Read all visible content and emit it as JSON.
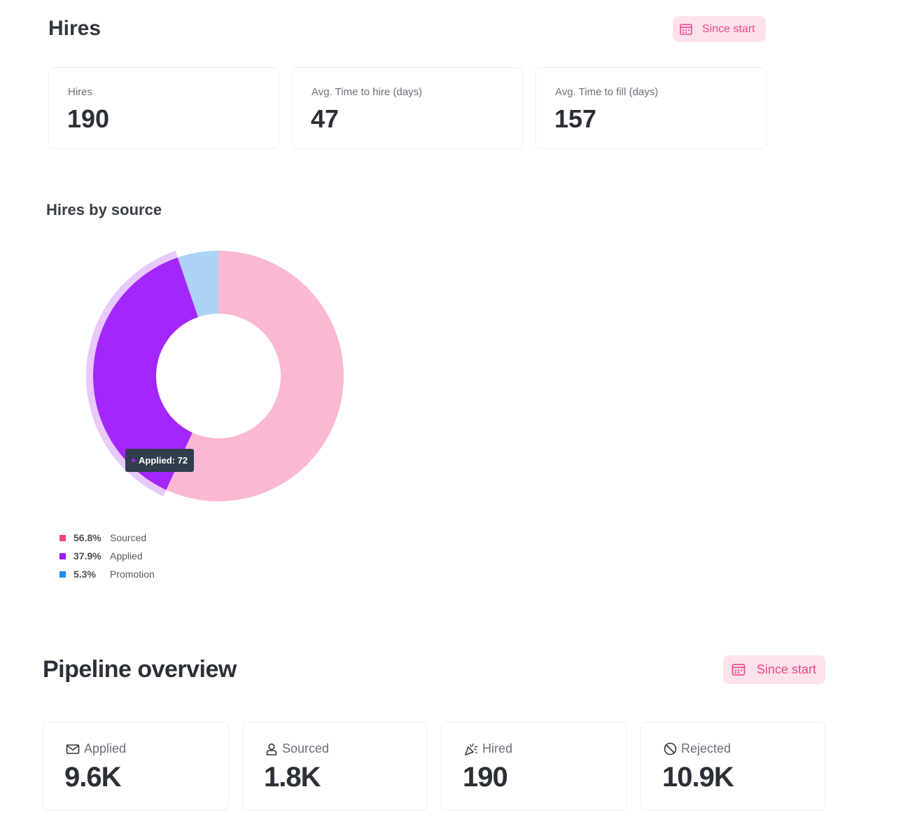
{
  "hires_section": {
    "title": "Hires",
    "date_filter": {
      "label": "Since start",
      "icon": "calendar-icon"
    },
    "stats": [
      {
        "label": "Hires",
        "value": "190"
      },
      {
        "label": "Avg. Time to hire (days)",
        "value": "47"
      },
      {
        "label": "Avg. Time to fill (days)",
        "value": "157"
      }
    ]
  },
  "hires_by_source": {
    "title": "Hires by source",
    "tooltip": "Applied: 72",
    "legend": [
      {
        "pct": "56.8%",
        "name": "Sourced"
      },
      {
        "pct": "37.9%",
        "name": "Applied"
      },
      {
        "pct": "5.3%",
        "name": "Promotion"
      }
    ]
  },
  "chart_data": {
    "type": "pie",
    "variant": "donut",
    "title": "Hires by source",
    "categories": [
      "Sourced",
      "Applied",
      "Promotion"
    ],
    "values": [
      108,
      72,
      10
    ],
    "percentages": [
      56.8,
      37.9,
      5.3
    ],
    "colors": [
      "#fbb8d2",
      "#a327fb",
      "#acd3f6"
    ],
    "legend_colors": [
      "#f0417f",
      "#9b1cf7",
      "#2189ea"
    ],
    "highlighted": "Applied",
    "legend_placement": "bottom-left"
  },
  "pipeline": {
    "title": "Pipeline overview",
    "date_filter": {
      "label": "Since start",
      "icon": "calendar-icon"
    },
    "stats": [
      {
        "label": "Applied",
        "value": "9.6K",
        "icon": "envelope-icon"
      },
      {
        "label": "Sourced",
        "value": "1.8K",
        "icon": "user-icon"
      },
      {
        "label": "Hired",
        "value": "190",
        "icon": "party-popper-icon"
      },
      {
        "label": "Rejected",
        "value": "10.9K",
        "icon": "ban-icon"
      }
    ]
  }
}
